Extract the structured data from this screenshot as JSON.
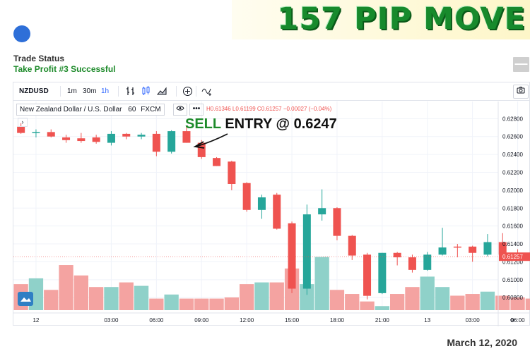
{
  "headline": "157 PIP MOVE",
  "trade": {
    "status_label": "Trade Status",
    "status_value": "Take Profit #3 Successful",
    "collapse_label": "—"
  },
  "toolbar": {
    "symbol": "NZDUSD",
    "intervals": [
      "1m",
      "30m",
      "1h"
    ],
    "selected_interval": "1h"
  },
  "legend": {
    "title": "New Zealand Dollar / U.S. Dollar",
    "interval": "60",
    "source": "FXCM",
    "ohlc": "H0.61346 L0.61199 C0.61257 −0.00027 (−0.04%)",
    "collapse": "›",
    "more": "•••"
  },
  "annotation": {
    "sell": "SELL",
    "rest": " ENTRY @  0.6247"
  },
  "date": "March 12, 2020",
  "colors": {
    "up": "#26a69a",
    "down": "#ef5350",
    "up_volume": "#8fd1c9",
    "down_volume": "#f4a3a1",
    "accent": "#2962ff",
    "headline_green": "#178a2c"
  },
  "chart_data": {
    "type": "candlestick",
    "ylim": [
      0.6066,
      0.6296
    ],
    "price_ticks": [
      "0.62800",
      "0.62600",
      "0.62400",
      "0.62200",
      "0.62000",
      "0.61800",
      "0.61600",
      "0.61400",
      "0.61200",
      "0.61000",
      "0.60800"
    ],
    "price_tick_values": [
      0.628,
      0.626,
      0.624,
      0.622,
      0.62,
      0.618,
      0.616,
      0.614,
      0.612,
      0.61,
      0.608
    ],
    "last_price": "0.61257",
    "last_price_value": 0.61257,
    "time_ticks": [
      "12",
      "03:00",
      "06:00",
      "09:00",
      "12:00",
      "15:00",
      "18:00",
      "21:00",
      "13",
      "03:00",
      "06:00"
    ],
    "time_tick_index": [
      1.5,
      6.5,
      9.5,
      12.5,
      15.5,
      18.5,
      21.5,
      24.5,
      27.5,
      30.5,
      33.5
    ],
    "candles": [
      {
        "o": 0.6271,
        "h": 0.6275,
        "l": 0.6263,
        "c": 0.6264,
        "v": 0.45
      },
      {
        "o": 0.6264,
        "h": 0.6268,
        "l": 0.6259,
        "c": 0.6265,
        "v": 0.55
      },
      {
        "o": 0.6265,
        "h": 0.6268,
        "l": 0.6259,
        "c": 0.626,
        "v": 0.35
      },
      {
        "o": 0.6259,
        "h": 0.6262,
        "l": 0.6253,
        "c": 0.6256,
        "v": 0.78
      },
      {
        "o": 0.6258,
        "h": 0.6264,
        "l": 0.6253,
        "c": 0.6255,
        "v": 0.6
      },
      {
        "o": 0.6259,
        "h": 0.6262,
        "l": 0.6252,
        "c": 0.6254,
        "v": 0.4
      },
      {
        "o": 0.6253,
        "h": 0.6266,
        "l": 0.625,
        "c": 0.6263,
        "v": 0.4
      },
      {
        "o": 0.6263,
        "h": 0.6264,
        "l": 0.6257,
        "c": 0.626,
        "v": 0.48
      },
      {
        "o": 0.626,
        "h": 0.6264,
        "l": 0.6257,
        "c": 0.6262,
        "v": 0.42
      },
      {
        "o": 0.6263,
        "h": 0.6266,
        "l": 0.6238,
        "c": 0.6243,
        "v": 0.2
      },
      {
        "o": 0.6243,
        "h": 0.6267,
        "l": 0.6241,
        "c": 0.6266,
        "v": 0.27
      },
      {
        "o": 0.6266,
        "h": 0.6272,
        "l": 0.6253,
        "c": 0.6253,
        "v": 0.2
      },
      {
        "o": 0.6253,
        "h": 0.6256,
        "l": 0.6235,
        "c": 0.6237,
        "v": 0.2
      },
      {
        "o": 0.6236,
        "h": 0.6237,
        "l": 0.6227,
        "c": 0.6227,
        "v": 0.2
      },
      {
        "o": 0.6232,
        "h": 0.6233,
        "l": 0.62,
        "c": 0.6207,
        "v": 0.22
      },
      {
        "o": 0.6208,
        "h": 0.6209,
        "l": 0.6176,
        "c": 0.6178,
        "v": 0.45
      },
      {
        "o": 0.6178,
        "h": 0.6195,
        "l": 0.6168,
        "c": 0.6192,
        "v": 0.48
      },
      {
        "o": 0.6195,
        "h": 0.6197,
        "l": 0.6156,
        "c": 0.6157,
        "v": 0.48
      },
      {
        "o": 0.6163,
        "h": 0.6165,
        "l": 0.6085,
        "c": 0.609,
        "v": 0.72
      },
      {
        "o": 0.609,
        "h": 0.6184,
        "l": 0.6083,
        "c": 0.6173,
        "v": 0.45
      },
      {
        "o": 0.6173,
        "h": 0.6201,
        "l": 0.6166,
        "c": 0.618,
        "v": 0.92
      },
      {
        "o": 0.618,
        "h": 0.6181,
        "l": 0.6144,
        "c": 0.6149,
        "v": 0.35
      },
      {
        "o": 0.6149,
        "h": 0.615,
        "l": 0.6122,
        "c": 0.6127,
        "v": 0.28
      },
      {
        "o": 0.6128,
        "h": 0.613,
        "l": 0.6078,
        "c": 0.6082,
        "v": 0.15
      },
      {
        "o": 0.6085,
        "h": 0.613,
        "l": 0.6084,
        "c": 0.613,
        "v": 0.07
      },
      {
        "o": 0.613,
        "h": 0.6131,
        "l": 0.6116,
        "c": 0.6125,
        "v": 0.28
      },
      {
        "o": 0.6125,
        "h": 0.6128,
        "l": 0.6108,
        "c": 0.6111,
        "v": 0.4
      },
      {
        "o": 0.6111,
        "h": 0.6131,
        "l": 0.611,
        "c": 0.6128,
        "v": 0.58
      },
      {
        "o": 0.6128,
        "h": 0.6158,
        "l": 0.6127,
        "c": 0.6136,
        "v": 0.4
      },
      {
        "o": 0.6137,
        "h": 0.614,
        "l": 0.6125,
        "c": 0.6136,
        "v": 0.25
      },
      {
        "o": 0.6137,
        "h": 0.6138,
        "l": 0.612,
        "c": 0.613,
        "v": 0.28
      },
      {
        "o": 0.6128,
        "h": 0.6151,
        "l": 0.6126,
        "c": 0.6142,
        "v": 0.32
      },
      {
        "o": 0.6142,
        "h": 0.6152,
        "l": 0.6127,
        "c": 0.6128,
        "v": 0.25
      },
      {
        "o": 0.613,
        "h": 0.6134,
        "l": 0.6123,
        "c": 0.6129,
        "v": 0.22
      },
      {
        "o": 0.6128,
        "h": 0.6131,
        "l": 0.612,
        "c": 0.6125,
        "v": 0.2
      }
    ]
  }
}
